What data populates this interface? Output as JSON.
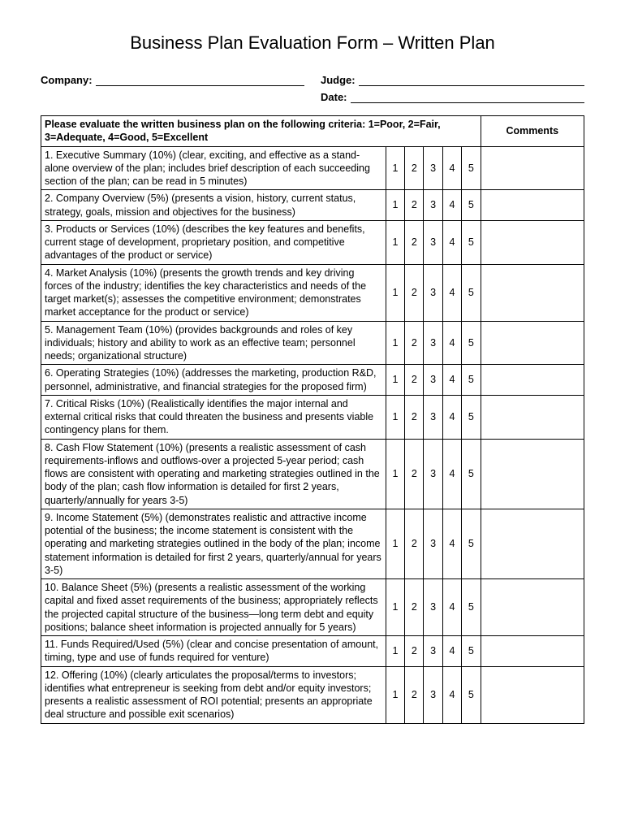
{
  "title": "Business Plan Evaluation Form – Written Plan",
  "fields": {
    "company_label": "Company:",
    "judge_label": "Judge:",
    "date_label": "Date:"
  },
  "table": {
    "header_instruction": "Please evaluate the written business plan on the following criteria: 1=Poor, 2=Fair, 3=Adequate, 4=Good, 5=Excellent",
    "comments_header": "Comments",
    "ratings": [
      "1",
      "2",
      "3",
      "4",
      "5"
    ],
    "criteria": [
      "1.  Executive Summary (10%) (clear, exciting, and effective as a stand-alone overview of the plan; includes brief description of each succeeding section of the plan; can be read in 5 minutes)",
      "2.  Company Overview (5%) (presents a vision, history, current status, strategy, goals, mission and objectives for the business)",
      "3.  Products or Services (10%) (describes the key features and benefits, current stage of development, proprietary position, and competitive advantages of the product or service)",
      "4.  Market Analysis (10%) (presents the growth trends and key driving forces of the industry; identifies the key characteristics and needs of the target market(s); assesses the competitive environment; demonstrates market acceptance for the product or service)",
      "5.  Management Team (10%) (provides backgrounds and roles of key individuals; history and ability to work as an effective team; personnel needs; organizational structure)",
      "6.  Operating Strategies (10%) (addresses the marketing, production R&D, personnel, administrative, and financial strategies for the proposed firm)",
      "7.  Critical Risks (10%) (Realistically identifies the major internal and external critical risks that could threaten the business and presents viable contingency plans for them.",
      "8.  Cash Flow Statement (10%) (presents a realistic assessment of cash requirements-inflows and outflows-over a projected 5-year period; cash flows are consistent with operating and marketing strategies outlined in the body of the plan; cash flow information is detailed for first 2 years, quarterly/annually for years 3-5)",
      "9.  Income Statement (5%) (demonstrates realistic and attractive income potential of the business; the income statement is consistent with the operating and marketing strategies outlined in the body of the plan; income statement information is detailed for first 2 years, quarterly/annual for years 3-5)",
      "10. Balance Sheet (5%) (presents a realistic assessment of the working capital and fixed asset requirements of the business; appropriately reflects the projected capital structure of the business—long term debt and equity positions; balance sheet information is projected annually for 5 years)",
      "11. Funds Required/Used (5%) (clear and concise presentation of amount, timing, type and use of funds required for venture)",
      "12. Offering (10%) (clearly articulates the proposal/terms to investors; identifies what entrepreneur is seeking from debt and/or equity investors; presents a realistic assessment of ROI potential; presents an appropriate deal structure and possible exit scenarios)"
    ]
  }
}
